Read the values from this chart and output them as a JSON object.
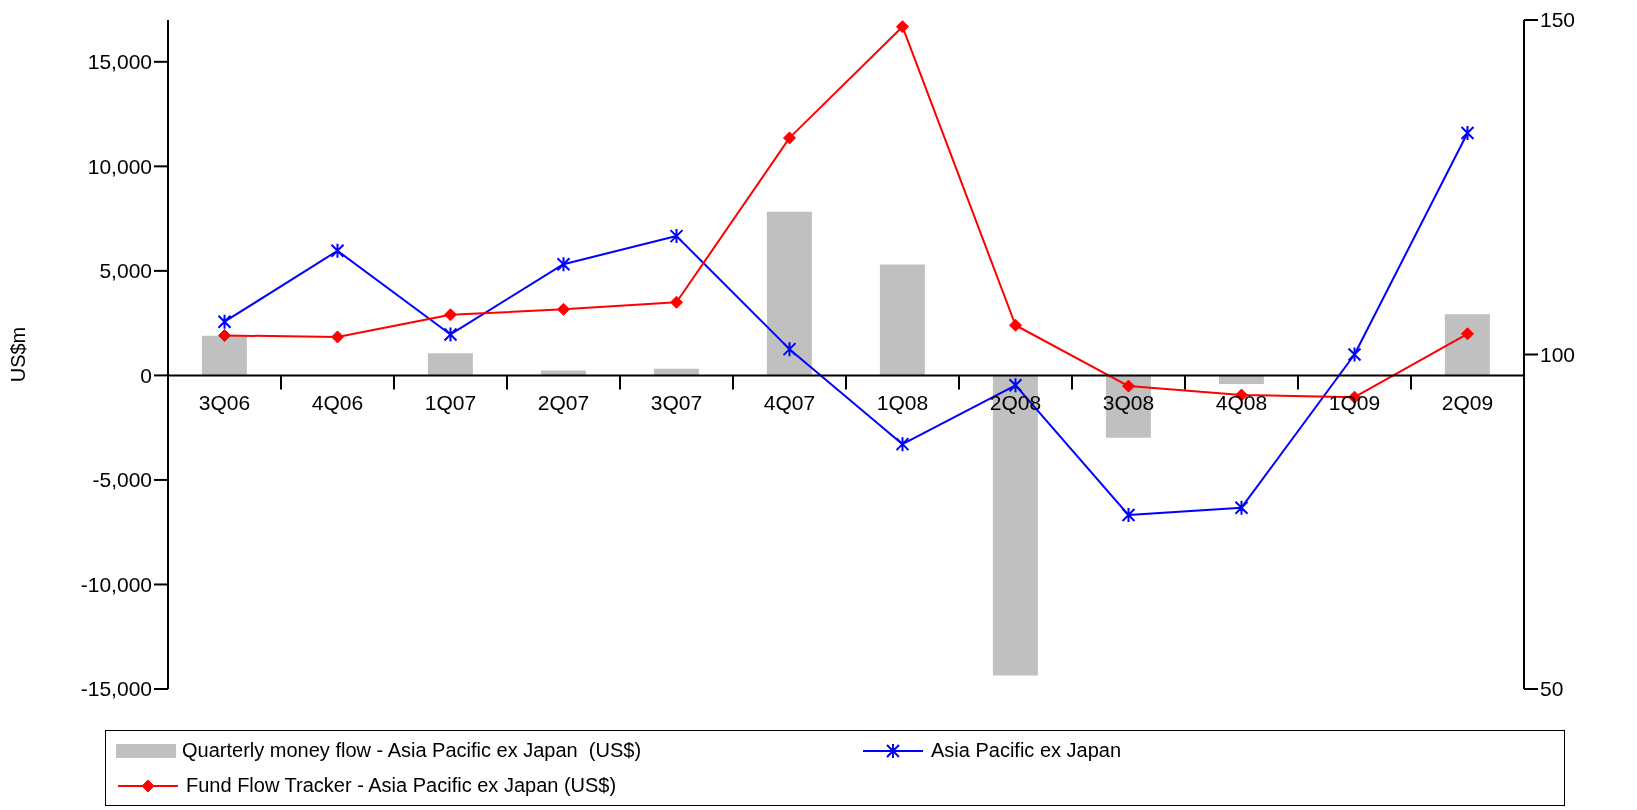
{
  "chart_data": {
    "type": "bar",
    "ylabel": "US$m",
    "categories": [
      "3Q06",
      "4Q06",
      "1Q07",
      "2Q07",
      "3Q07",
      "4Q07",
      "1Q08",
      "2Q08",
      "3Q08",
      "4Q08",
      "1Q09",
      "2Q09"
    ],
    "series": [
      {
        "name": "Quarterly money flow - Asia Pacific ex Japan  (US$)",
        "color": "#c0c0c0",
        "values": [
          1900,
          null,
          1060,
          230,
          320,
          7830,
          5300,
          -14360,
          -2980,
          -410,
          null,
          2930
        ]
      },
      {
        "name": "Asia Pacific ex Japan",
        "type": "line",
        "axis": "y2",
        "color": "#0000ff",
        "marker": "cross",
        "values": [
          104.9,
          115.5,
          103.0,
          113.5,
          117.7,
          100.8,
          86.6,
          95.4,
          76.0,
          77.1,
          100.0,
          133.1
        ]
      },
      {
        "name": "Fund Flow Tracker - Asia Pacific ex Japan (US$)",
        "type": "line",
        "color": "#ff0000",
        "marker": "diamond",
        "values": [
          1910,
          1840,
          2900,
          3160,
          3500,
          11360,
          16680,
          2400,
          -510,
          -940,
          -1040,
          1990
        ]
      }
    ],
    "ylim": [
      -15000,
      17000
    ],
    "yticks": [
      {
        "value": -15000,
        "label": "-15,000"
      },
      {
        "value": -10000,
        "label": "-10,000"
      },
      {
        "value": -5000,
        "label": "-5,000"
      },
      0,
      {
        "value": 5000,
        "label": "5,000"
      },
      {
        "value": 10000,
        "label": "10,000"
      },
      {
        "value": 15000,
        "label": "15,000"
      }
    ],
    "y2lim": [
      50,
      150
    ],
    "y2ticks": [
      50,
      100,
      150
    ],
    "grid": false,
    "legend": "bottom"
  }
}
